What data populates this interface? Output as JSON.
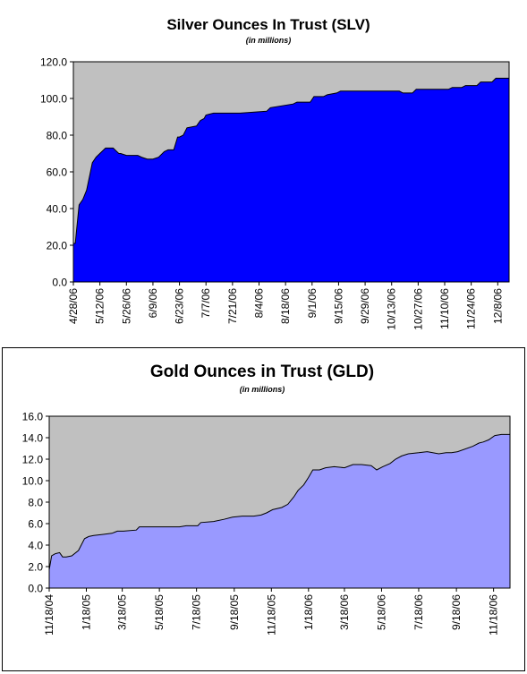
{
  "chart_data": [
    {
      "type": "area",
      "title": "Silver Ounces In Trust (SLV)",
      "subtitle": "(in millions)",
      "ylim": [
        0,
        120
      ],
      "yticks": [
        "0.0",
        "20.0",
        "40.0",
        "60.0",
        "80.0",
        "100.0",
        "120.0"
      ],
      "grid": false,
      "plot_bg": "#c0c0c0",
      "fill_color": "#0000ff",
      "line_color": "#000000",
      "xticks": [
        "4/28/06",
        "5/12/06",
        "5/26/06",
        "6/9/06",
        "6/23/06",
        "7/7/06",
        "7/21/06",
        "8/4/06",
        "8/18/06",
        "9/1/06",
        "9/15/06",
        "9/29/06",
        "10/13/06",
        "10/27/06",
        "11/10/06",
        "11/24/06",
        "12/8/06"
      ],
      "x": [
        "4/28/06",
        "4/29/06",
        "5/1/06",
        "5/3/06",
        "5/5/06",
        "5/7/06",
        "5/8/06",
        "5/10/06",
        "5/12/06",
        "5/14/06",
        "5/15/06",
        "5/16/06",
        "5/19/06",
        "5/22/06",
        "5/23/06",
        "5/26/06",
        "6/1/06",
        "6/3/06",
        "6/6/06",
        "6/9/06",
        "6/12/06",
        "6/15/06",
        "6/17/06",
        "6/20/06",
        "6/22/06",
        "6/23/06",
        "6/25/06",
        "6/27/06",
        "7/2/06",
        "7/4/06",
        "7/6/06",
        "7/7/06",
        "7/11/06",
        "7/21/06",
        "7/25/06",
        "8/8/06",
        "8/10/06",
        "8/22/06",
        "8/24/06",
        "8/31/06",
        "9/2/06",
        "9/7/06",
        "9/9/06",
        "9/14/06",
        "9/16/06",
        "10/17/06",
        "10/19/06",
        "10/24/06",
        "10/26/06",
        "11/12/06",
        "11/14/06",
        "11/19/06",
        "11/21/06",
        "11/27/06",
        "11/29/06",
        "12/5/06",
        "12/7/06",
        "12/14/06"
      ],
      "y": [
        21,
        21,
        42,
        45,
        50,
        60,
        65,
        68,
        70,
        72,
        73,
        73,
        73,
        70,
        70,
        69,
        69,
        68,
        67,
        67,
        68,
        71,
        72,
        72,
        79,
        79,
        80,
        84,
        85,
        88,
        89,
        91,
        92,
        92,
        92,
        93,
        95,
        97,
        98,
        98,
        101,
        101,
        102,
        103,
        104,
        104,
        103,
        103,
        105,
        105,
        106,
        106,
        107,
        107,
        109,
        109,
        111,
        111
      ]
    },
    {
      "type": "area",
      "title": "Gold Ounces in Trust (GLD)",
      "subtitle": "(in millions)",
      "ylim": [
        0,
        16
      ],
      "yticks": [
        "0.0",
        "2.0",
        "4.0",
        "6.0",
        "8.0",
        "10.0",
        "12.0",
        "14.0",
        "16.0"
      ],
      "grid": false,
      "plot_bg": "#c0c0c0",
      "fill_color": "#9999ff",
      "line_color": "#000000",
      "xticks": [
        "11/18/04",
        "1/18/05",
        "3/18/05",
        "5/18/05",
        "7/18/05",
        "9/18/05",
        "11/18/05",
        "1/18/06",
        "3/18/06",
        "5/18/06",
        "7/18/06",
        "9/18/06",
        "11/18/06"
      ],
      "x": [
        "11/18/04",
        "11/22/04",
        "11/28/04",
        "12/5/04",
        "12/10/04",
        "12/16/04",
        "12/25/04",
        "1/5/05",
        "1/15/05",
        "1/22/05",
        "1/30/05",
        "2/15/05",
        "3/1/05",
        "3/10/05",
        "3/20/05",
        "4/10/05",
        "4/15/05",
        "5/1/05",
        "5/25/05",
        "6/20/05",
        "7/1/05",
        "7/20/05",
        "7/25/05",
        "8/15/05",
        "9/1/05",
        "9/15/05",
        "10/1/05",
        "10/20/05",
        "11/1/05",
        "11/10/05",
        "11/20/05",
        "12/5/05",
        "12/15/05",
        "12/25/05",
        "1/1/06",
        "1/10/06",
        "1/18/06",
        "1/25/06",
        "2/5/06",
        "2/15/06",
        "3/1/06",
        "3/18/06",
        "4/1/06",
        "4/15/06",
        "5/1/06",
        "5/10/06",
        "5/20/06",
        "6/1/06",
        "6/10/06",
        "6/20/06",
        "7/1/06",
        "7/18/06",
        "8/1/06",
        "8/20/06",
        "9/1/06",
        "9/10/06",
        "9/20/06",
        "10/15/06",
        "10/25/06",
        "11/1/06",
        "11/10/06",
        "11/20/06",
        "12/1/06",
        "12/5/06",
        "12/15/06"
      ],
      "y": [
        1.7,
        3.0,
        3.2,
        3.3,
        2.9,
        2.9,
        3.0,
        3.5,
        4.6,
        4.8,
        4.9,
        5.0,
        5.1,
        5.3,
        5.3,
        5.4,
        5.7,
        5.7,
        5.7,
        5.7,
        5.8,
        5.8,
        6.1,
        6.2,
        6.4,
        6.6,
        6.7,
        6.7,
        6.8,
        7.0,
        7.3,
        7.5,
        7.8,
        8.5,
        9.1,
        9.6,
        10.3,
        11.0,
        11.0,
        11.2,
        11.3,
        11.2,
        11.5,
        11.5,
        11.4,
        11.0,
        11.3,
        11.6,
        12.0,
        12.3,
        12.5,
        12.6,
        12.7,
        12.5,
        12.6,
        12.6,
        12.7,
        13.2,
        13.5,
        13.6,
        13.8,
        14.2,
        14.3,
        14.3,
        14.3
      ]
    }
  ]
}
